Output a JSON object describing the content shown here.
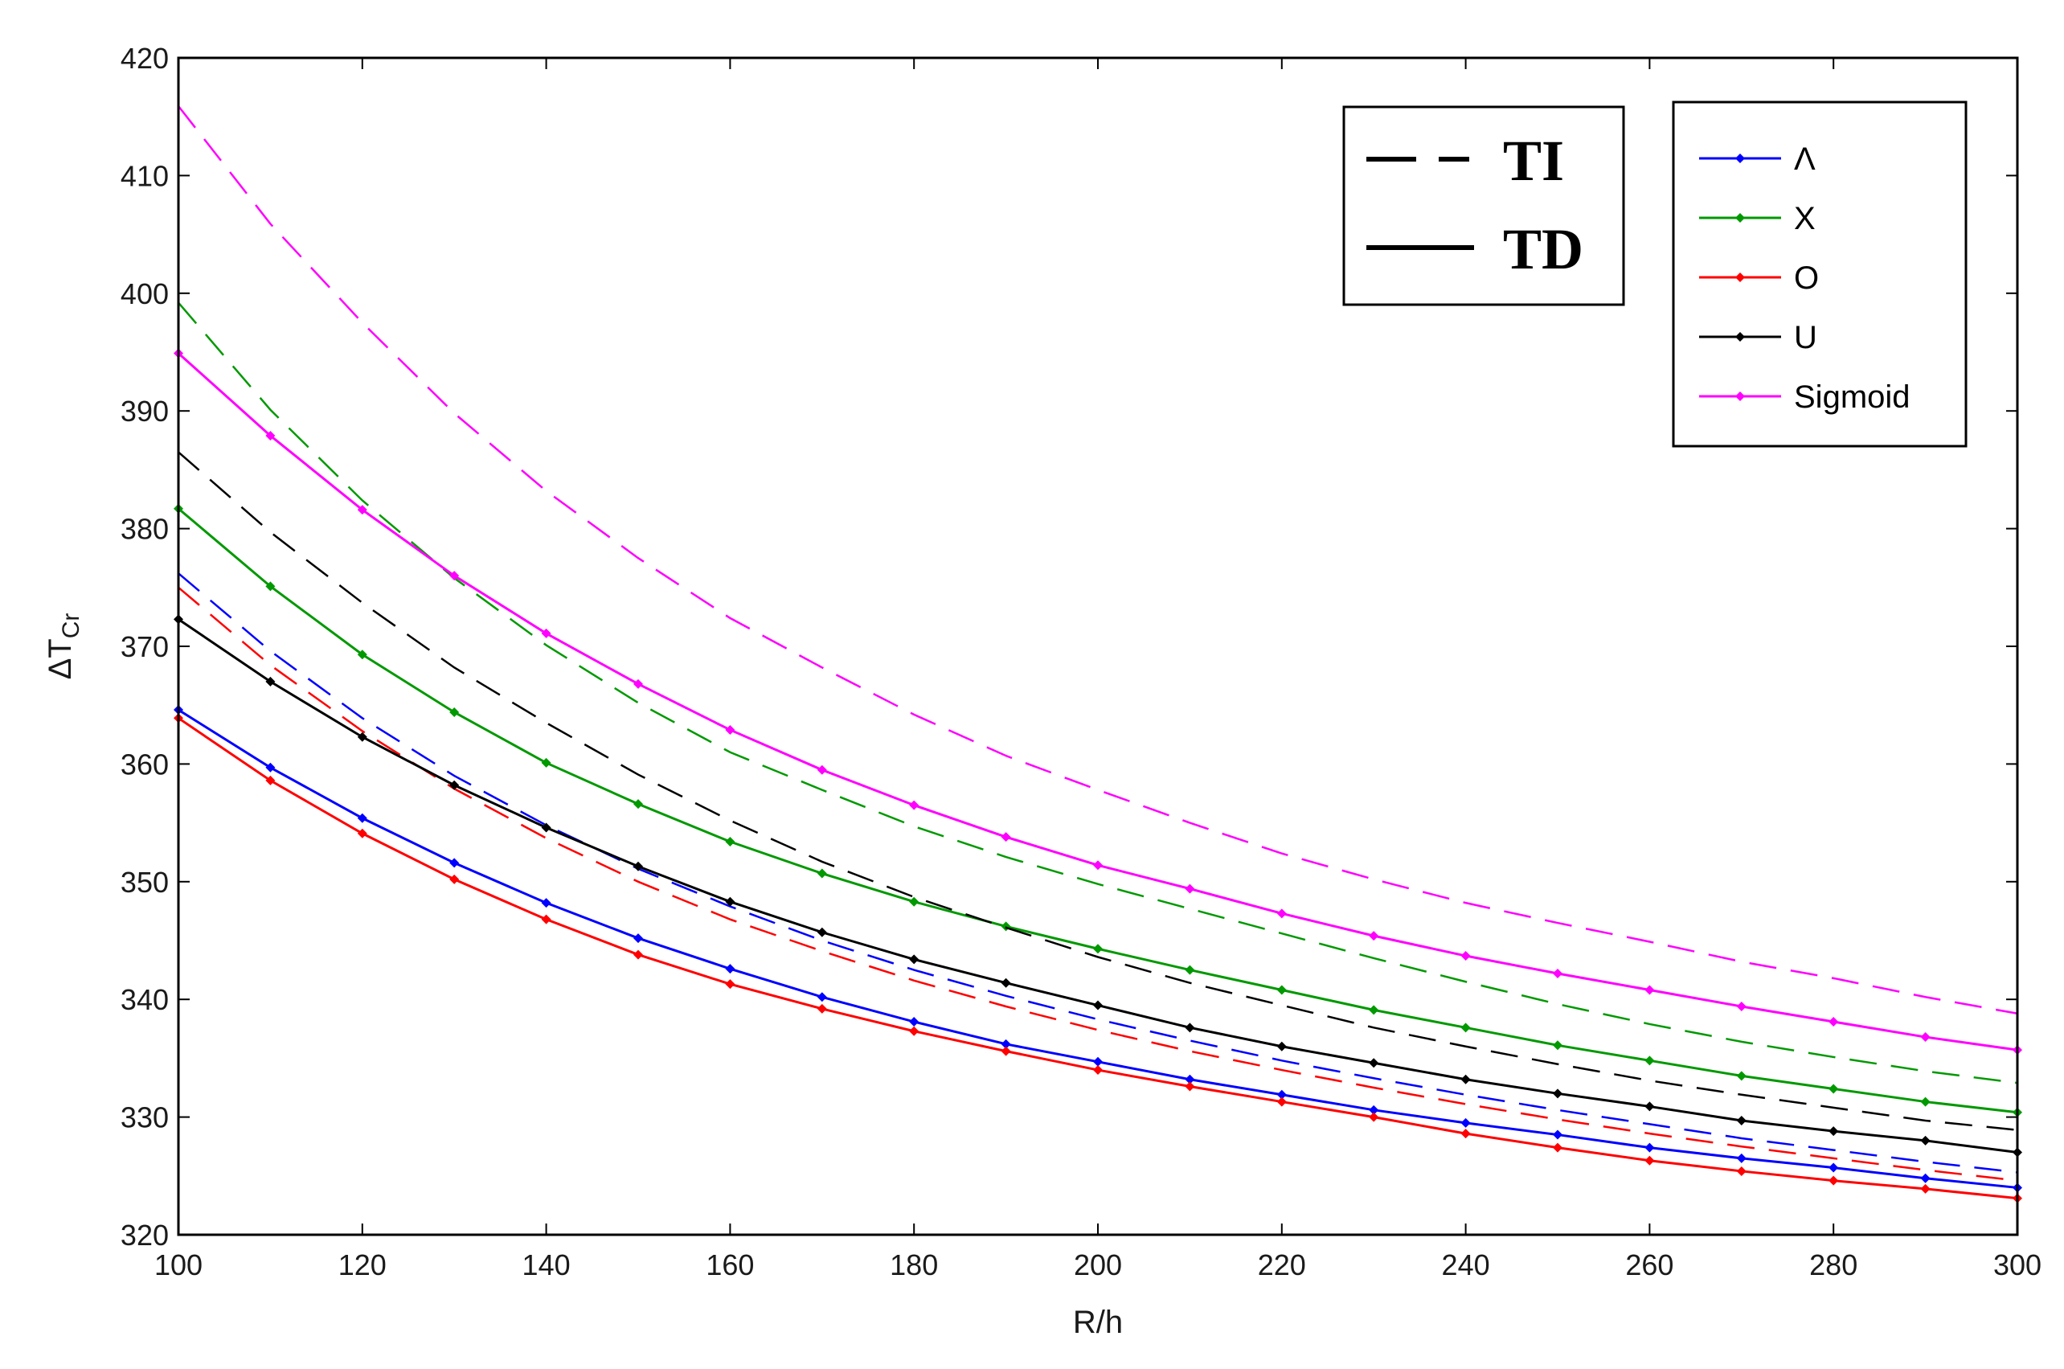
{
  "chart_data": {
    "type": "line",
    "xlabel": "R/h",
    "ylabel_main": "ΔT",
    "ylabel_sub": "Cr",
    "xlim": [
      100,
      300
    ],
    "ylim": [
      320,
      420
    ],
    "xticks": [
      100,
      120,
      140,
      160,
      180,
      200,
      220,
      240,
      260,
      280,
      300
    ],
    "yticks": [
      320,
      330,
      340,
      350,
      360,
      370,
      380,
      390,
      400,
      410,
      420
    ],
    "grid": false,
    "x": [
      100,
      110,
      120,
      130,
      140,
      150,
      160,
      170,
      180,
      190,
      200,
      210,
      220,
      230,
      240,
      250,
      260,
      270,
      280,
      290,
      300
    ],
    "style_legend": [
      {
        "label": "TI",
        "dash": "dashed"
      },
      {
        "label": "TD",
        "dash": "solid"
      }
    ],
    "series": [
      {
        "name": "Λ",
        "color": "#0000ff",
        "markers": true,
        "td": [
          364.6,
          359.7,
          355.4,
          351.6,
          348.2,
          345.2,
          342.6,
          340.2,
          338.1,
          336.2,
          334.7,
          333.2,
          331.9,
          330.6,
          329.5,
          328.5,
          327.4,
          326.5,
          325.7,
          324.8,
          324.0
        ],
        "ti": [
          376.2,
          369.6,
          363.9,
          359.0,
          354.8,
          351.1,
          347.9,
          345.0,
          342.5,
          340.3,
          338.3,
          336.5,
          334.8,
          333.3,
          331.9,
          330.6,
          329.4,
          328.2,
          327.2,
          326.2,
          325.3
        ]
      },
      {
        "name": "X",
        "color": "#009900",
        "markers": true,
        "td": [
          381.7,
          375.1,
          369.3,
          364.4,
          360.1,
          356.6,
          353.4,
          350.7,
          348.3,
          346.2,
          344.3,
          342.5,
          340.8,
          339.1,
          337.6,
          336.1,
          334.8,
          333.5,
          332.4,
          331.3,
          330.4
        ],
        "ti": [
          399.2,
          390.1,
          382.4,
          375.8,
          370.1,
          365.2,
          361.0,
          357.8,
          354.7,
          352.1,
          349.8,
          347.7,
          345.6,
          343.5,
          341.5,
          339.6,
          337.9,
          336.4,
          335.1,
          333.9,
          332.9
        ]
      },
      {
        "name": "O",
        "color": "#ff0000",
        "markers": true,
        "td": [
          363.9,
          358.6,
          354.1,
          350.2,
          346.8,
          343.8,
          341.3,
          339.2,
          337.3,
          335.6,
          334.0,
          332.6,
          331.3,
          330.0,
          328.6,
          327.4,
          326.3,
          325.4,
          324.6,
          323.9,
          323.1
        ],
        "ti": [
          375.0,
          368.4,
          362.8,
          357.9,
          353.7,
          350.0,
          346.8,
          344.1,
          341.6,
          339.4,
          337.4,
          335.6,
          334.0,
          332.5,
          331.1,
          329.8,
          328.6,
          327.5,
          326.5,
          325.5,
          324.6
        ]
      },
      {
        "name": "U",
        "color": "#000000",
        "markers": true,
        "td": [
          372.3,
          367.0,
          362.3,
          358.2,
          354.6,
          351.3,
          348.3,
          345.7,
          343.4,
          341.4,
          339.5,
          337.6,
          336.0,
          334.6,
          333.2,
          332.0,
          330.9,
          329.7,
          328.8,
          328.0,
          327.0
        ],
        "ti": [
          386.5,
          379.7,
          373.7,
          368.2,
          363.5,
          359.1,
          355.2,
          351.7,
          348.7,
          346.1,
          343.6,
          341.4,
          339.5,
          337.6,
          336.0,
          334.5,
          333.1,
          331.9,
          330.8,
          329.7,
          328.9
        ]
      },
      {
        "name": "Sigmoid",
        "color": "#ff00ff",
        "markers": true,
        "td": [
          394.9,
          387.9,
          381.6,
          376.0,
          371.1,
          366.8,
          362.9,
          359.5,
          356.5,
          353.8,
          351.4,
          349.4,
          347.3,
          345.4,
          343.7,
          342.2,
          340.8,
          339.4,
          338.1,
          336.8,
          335.7
        ],
        "ti": [
          415.9,
          405.9,
          397.5,
          389.8,
          383.2,
          377.5,
          372.4,
          368.2,
          364.2,
          360.7,
          357.8,
          355.0,
          352.4,
          350.2,
          348.2,
          346.5,
          344.9,
          343.2,
          341.8,
          340.2,
          338.8
        ]
      }
    ]
  }
}
